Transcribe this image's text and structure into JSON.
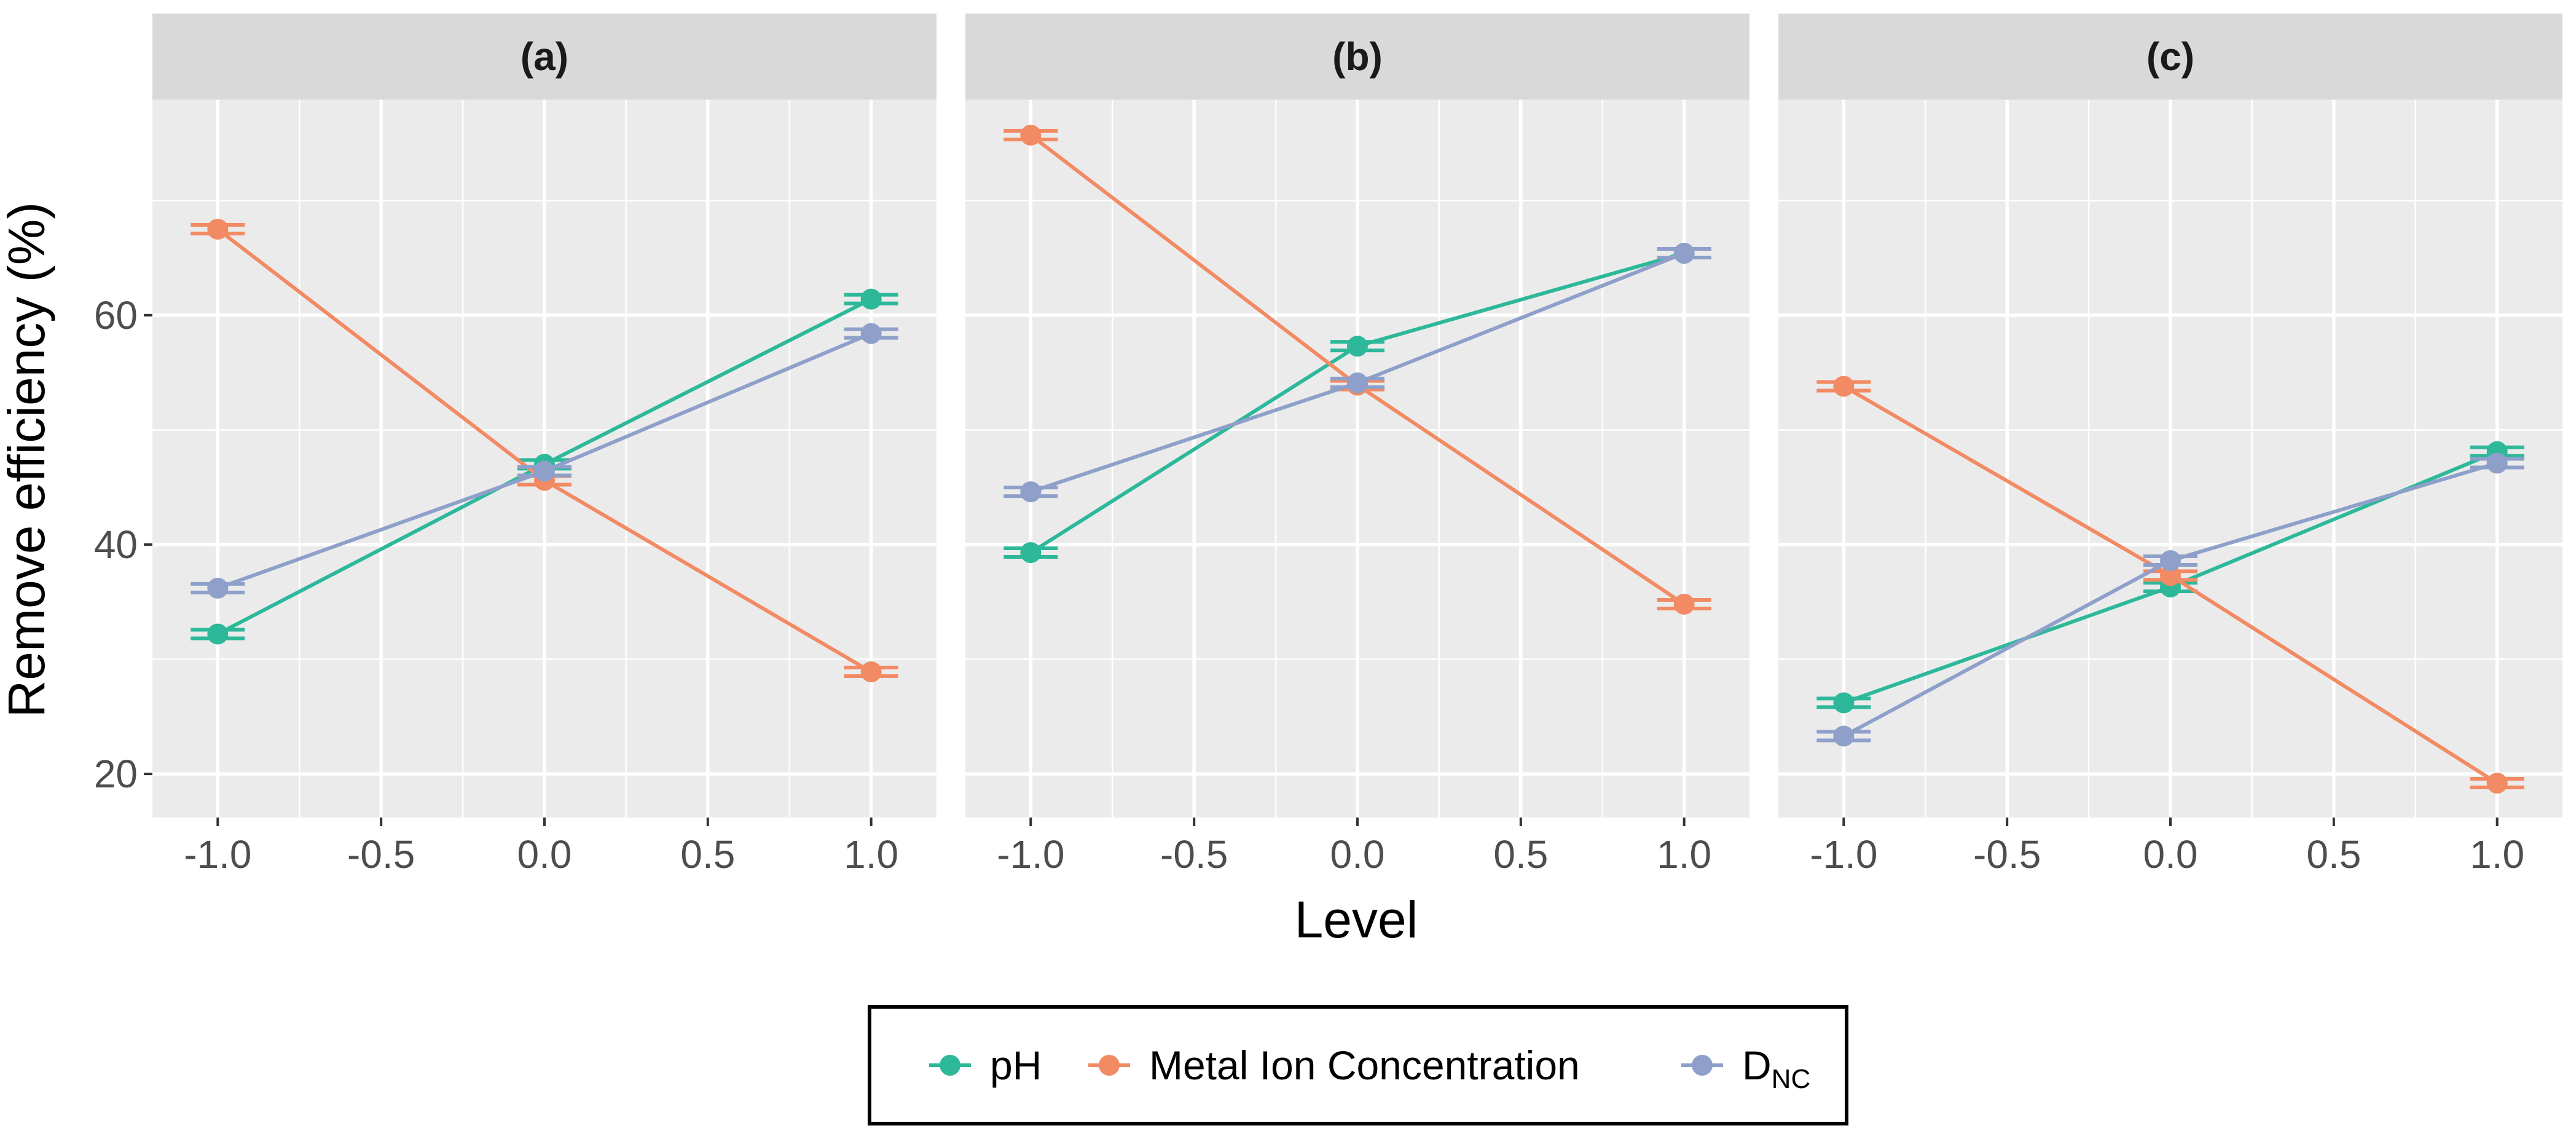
{
  "chart_data": {
    "type": "line",
    "ylabel": "Remove efficiency (%)",
    "xlabel": "Level",
    "x": [
      -1.0,
      0.0,
      1.0
    ],
    "xticks": [
      "-1.0",
      "-0.5",
      "0.0",
      "0.5",
      "1.0"
    ],
    "xtick_values": [
      -1.0,
      -0.5,
      0.0,
      0.5,
      1.0
    ],
    "xlim": [
      -1.2,
      1.2
    ],
    "yticks": [
      "20",
      "40",
      "60"
    ],
    "ytick_values": [
      20,
      40,
      60
    ],
    "ylim": [
      16.2,
      78.8
    ],
    "grid": true,
    "legend_position": "bottom",
    "colors": {
      "pH": "#2db89a",
      "Metal Ion Concentration": "#f28a63",
      "DNC": "#8ea0ca",
      "panel_bg": "#ebebeb",
      "strip_bg": "#d9d9d9",
      "grid": "#ffffff"
    },
    "legend": [
      {
        "key": "pH",
        "label": "pH",
        "sub": ""
      },
      {
        "key": "Metal Ion Concentration",
        "label": "Metal Ion Concentration",
        "sub": ""
      },
      {
        "key": "DNC",
        "label": "D",
        "sub": "NC"
      }
    ],
    "panels": [
      {
        "label": "(a)",
        "series": [
          {
            "name": "pH",
            "values": [
              32.2,
              47.0,
              61.4
            ]
          },
          {
            "name": "Metal Ion Concentration",
            "values": [
              67.5,
              45.6,
              28.9
            ]
          },
          {
            "name": "DNC",
            "values": [
              36.2,
              46.4,
              58.4
            ]
          }
        ]
      },
      {
        "label": "(b)",
        "series": [
          {
            "name": "pH",
            "values": [
              39.3,
              57.3,
              65.4
            ]
          },
          {
            "name": "Metal Ion Concentration",
            "values": [
              75.7,
              53.9,
              34.8
            ]
          },
          {
            "name": "DNC",
            "values": [
              44.6,
              54.1,
              65.4
            ]
          }
        ]
      },
      {
        "label": "(c)",
        "series": [
          {
            "name": "pH",
            "values": [
              26.2,
              36.3,
              48.1
            ]
          },
          {
            "name": "Metal Ion Concentration",
            "values": [
              53.8,
              37.3,
              19.2
            ]
          },
          {
            "name": "DNC",
            "values": [
              23.3,
              38.6,
              47.1
            ]
          }
        ]
      }
    ]
  }
}
